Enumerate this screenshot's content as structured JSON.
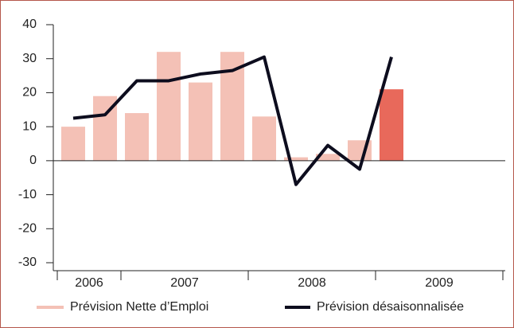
{
  "chart_data": {
    "type": "bar-line",
    "categories": [
      null,
      null,
      null,
      null,
      null,
      null,
      null,
      null,
      null,
      null,
      null,
      null,
      null,
      null
    ],
    "years": [
      "2006",
      "2007",
      "2008",
      "2009"
    ],
    "year_quarters": [
      2,
      4,
      4,
      4
    ],
    "series": [
      {
        "name": "Prévision Nette d’Emploi",
        "type": "bar",
        "color": "#f4c1b6",
        "colors": [
          "#f4c1b6",
          "#f4c1b6",
          "#f4c1b6",
          "#f4c1b6",
          "#f4c1b6",
          "#f4c1b6",
          "#f4c1b6",
          "#f4c1b6",
          "#f4c1b6",
          "#f4c1b6",
          "#e8695b",
          null,
          null,
          null
        ],
        "values": [
          10,
          19,
          14,
          32,
          23,
          32,
          13,
          1,
          2,
          6,
          21,
          null,
          null,
          null
        ]
      },
      {
        "name": "Prévision désaisonnalisée",
        "type": "line",
        "color": "#0d0d1e",
        "values": [
          12.5,
          13.5,
          23.5,
          23.5,
          25.5,
          26.5,
          30.5,
          -7,
          4.5,
          -2.5,
          30.5,
          null,
          null,
          null
        ]
      }
    ],
    "ylim": [
      -30,
      40
    ],
    "yticks": [
      -30,
      -20,
      -10,
      0,
      10,
      20,
      30,
      40
    ]
  }
}
